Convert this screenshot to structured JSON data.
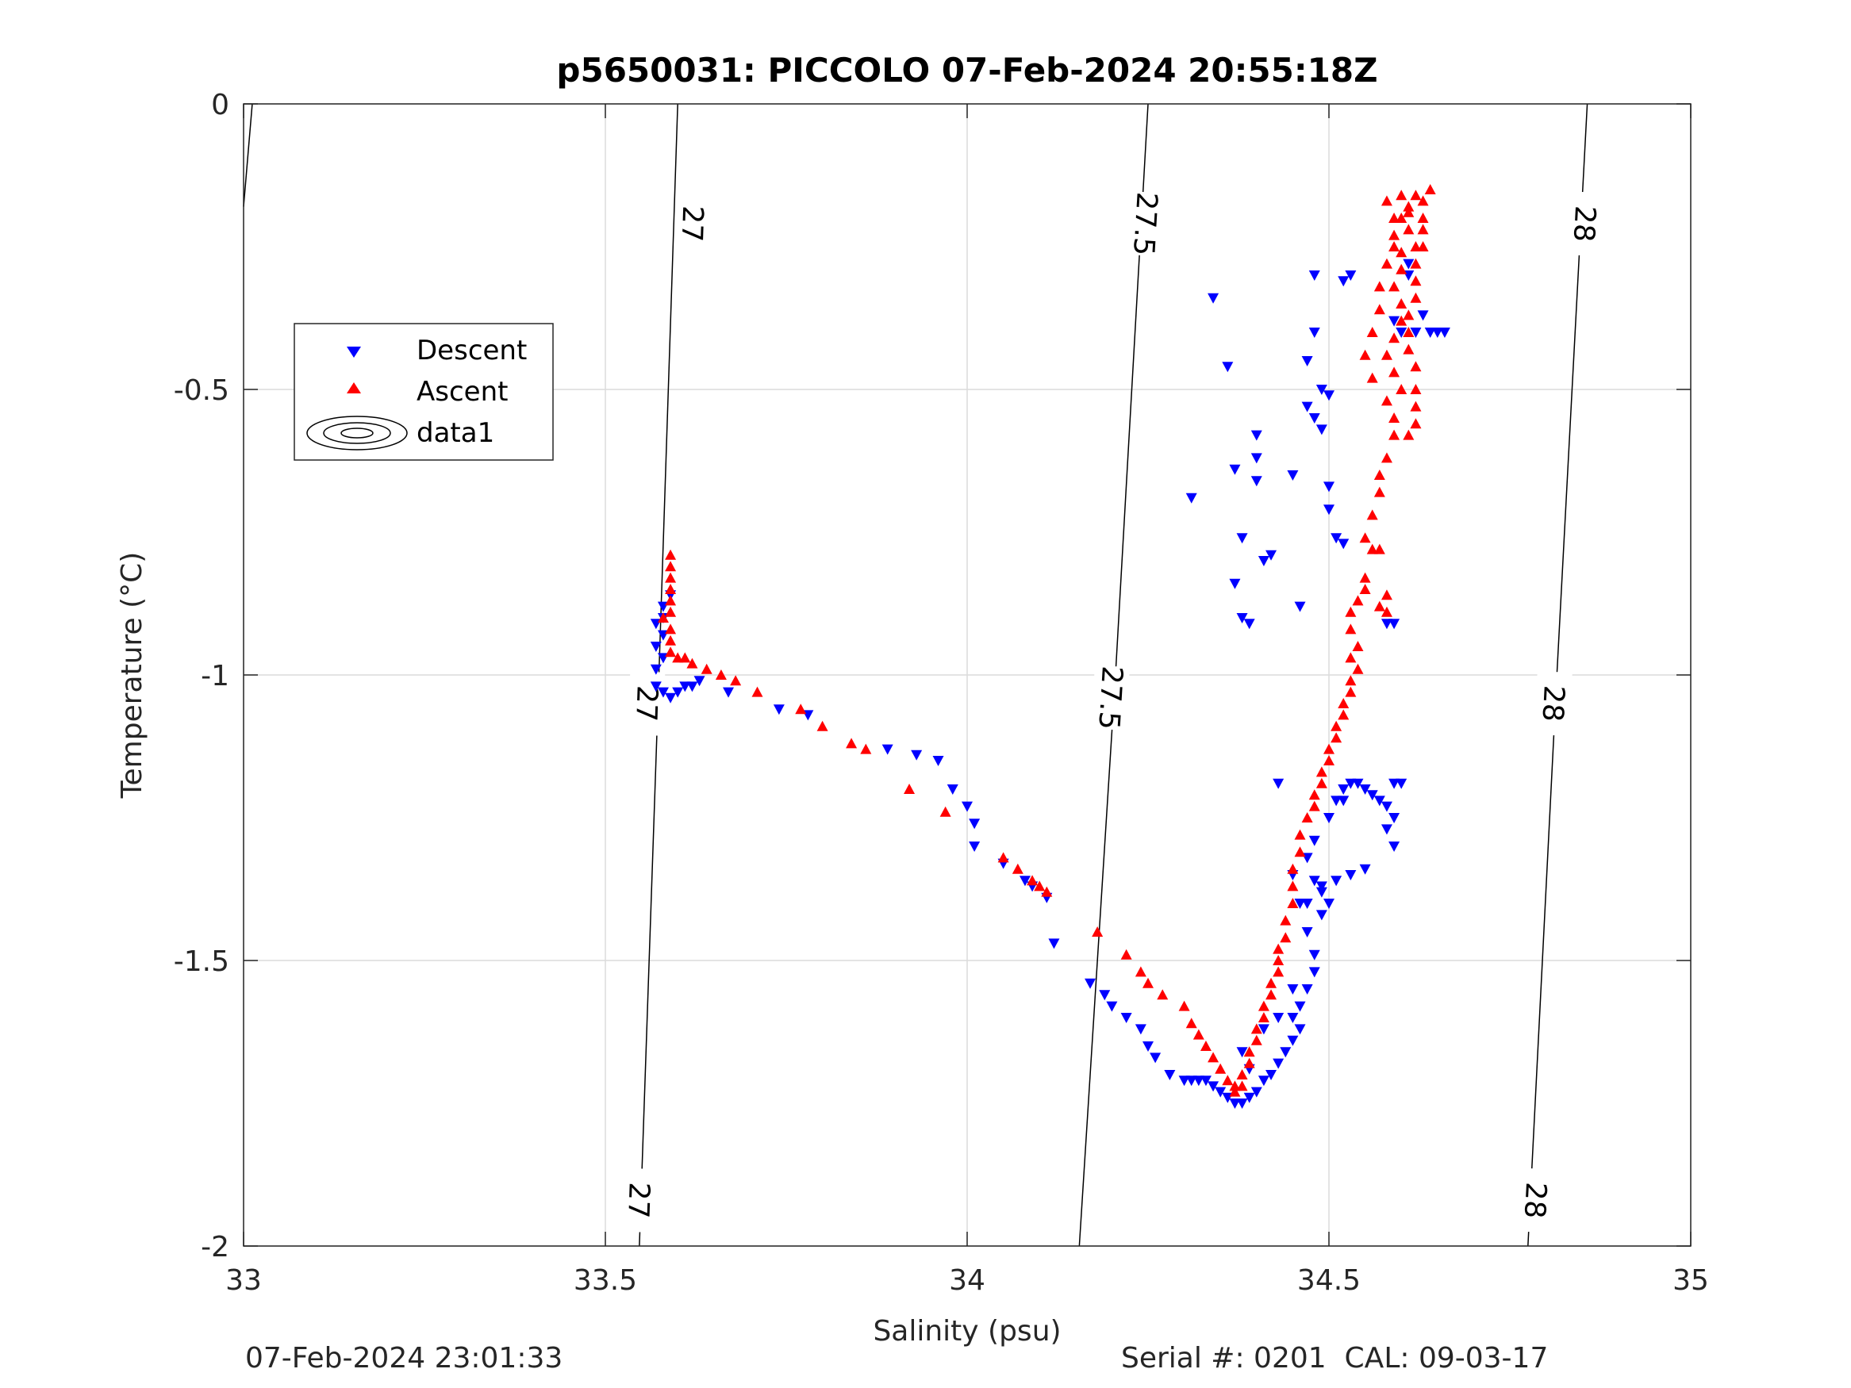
{
  "chart_data": {
    "type": "scatter",
    "title": "p5650031: PICCOLO 07-Feb-2024 20:55:18Z",
    "xlabel": "Salinity (psu)",
    "ylabel": "Temperature (°C)",
    "xlim": [
      33,
      35
    ],
    "ylim": [
      -2,
      0
    ],
    "xticks": [
      33,
      33.5,
      34,
      34.5,
      35
    ],
    "xtick_labels": [
      "33",
      "33.5",
      "34",
      "34.5",
      "35"
    ],
    "yticks": [
      -2,
      -1.5,
      -1,
      -0.5,
      0
    ],
    "ytick_labels": [
      "-2",
      "-1.5",
      "-1",
      "-0.5",
      "0"
    ],
    "grid": true,
    "legend_position": "upper-left",
    "legend": [
      "Descent",
      "Ascent",
      "data1"
    ],
    "series": [
      {
        "name": "Descent",
        "marker": "triangle-down",
        "color": "#0000ff",
        "points": [
          [
            34.34,
            -0.34
          ],
          [
            34.36,
            -0.46
          ],
          [
            34.48,
            -0.3
          ],
          [
            34.52,
            -0.31
          ],
          [
            34.53,
            -0.3
          ],
          [
            34.48,
            -0.4
          ],
          [
            34.47,
            -0.45
          ],
          [
            34.49,
            -0.5
          ],
          [
            34.5,
            -0.51
          ],
          [
            34.47,
            -0.53
          ],
          [
            34.48,
            -0.55
          ],
          [
            34.49,
            -0.57
          ],
          [
            34.4,
            -0.58
          ],
          [
            34.37,
            -0.64
          ],
          [
            34.4,
            -0.62
          ],
          [
            34.45,
            -0.65
          ],
          [
            34.4,
            -0.66
          ],
          [
            34.5,
            -0.67
          ],
          [
            34.31,
            -0.69
          ],
          [
            34.5,
            -0.71
          ],
          [
            34.38,
            -0.76
          ],
          [
            34.51,
            -0.76
          ],
          [
            34.52,
            -0.77
          ],
          [
            34.42,
            -0.79
          ],
          [
            34.41,
            -0.8
          ],
          [
            34.37,
            -0.84
          ],
          [
            34.46,
            -0.88
          ],
          [
            34.38,
            -0.9
          ],
          [
            34.39,
            -0.91
          ],
          [
            34.58,
            -0.91
          ],
          [
            34.59,
            -0.91
          ],
          [
            34.61,
            -0.28
          ],
          [
            34.61,
            -0.3
          ],
          [
            34.59,
            -0.38
          ],
          [
            34.6,
            -0.4
          ],
          [
            34.62,
            -0.4
          ],
          [
            34.64,
            -0.4
          ],
          [
            34.65,
            -0.4
          ],
          [
            34.66,
            -0.4
          ],
          [
            34.63,
            -0.37
          ],
          [
            33.59,
            -0.86
          ],
          [
            33.58,
            -0.88
          ],
          [
            33.58,
            -0.9
          ],
          [
            33.57,
            -0.91
          ],
          [
            33.58,
            -0.93
          ],
          [
            33.57,
            -0.95
          ],
          [
            33.58,
            -0.97
          ],
          [
            33.57,
            -0.99
          ],
          [
            33.57,
            -1.02
          ],
          [
            33.58,
            -1.03
          ],
          [
            33.59,
            -1.04
          ],
          [
            33.6,
            -1.03
          ],
          [
            33.61,
            -1.02
          ],
          [
            33.62,
            -1.02
          ],
          [
            33.63,
            -1.01
          ],
          [
            33.67,
            -1.03
          ],
          [
            33.74,
            -1.06
          ],
          [
            33.78,
            -1.07
          ],
          [
            33.89,
            -1.13
          ],
          [
            33.93,
            -1.14
          ],
          [
            33.96,
            -1.15
          ],
          [
            33.98,
            -1.2
          ],
          [
            34.0,
            -1.23
          ],
          [
            34.01,
            -1.26
          ],
          [
            34.01,
            -1.3
          ],
          [
            34.05,
            -1.33
          ],
          [
            34.08,
            -1.36
          ],
          [
            34.09,
            -1.37
          ],
          [
            34.11,
            -1.39
          ],
          [
            34.12,
            -1.47
          ],
          [
            34.17,
            -1.54
          ],
          [
            34.19,
            -1.56
          ],
          [
            34.2,
            -1.58
          ],
          [
            34.22,
            -1.6
          ],
          [
            34.24,
            -1.62
          ],
          [
            34.25,
            -1.65
          ],
          [
            34.26,
            -1.67
          ],
          [
            34.28,
            -1.7
          ],
          [
            34.3,
            -1.71
          ],
          [
            34.31,
            -1.71
          ],
          [
            34.32,
            -1.71
          ],
          [
            34.33,
            -1.71
          ],
          [
            34.34,
            -1.72
          ],
          [
            34.35,
            -1.73
          ],
          [
            34.36,
            -1.74
          ],
          [
            34.37,
            -1.75
          ],
          [
            34.38,
            -1.75
          ],
          [
            34.39,
            -1.74
          ],
          [
            34.4,
            -1.73
          ],
          [
            34.41,
            -1.71
          ],
          [
            34.42,
            -1.7
          ],
          [
            34.43,
            -1.68
          ],
          [
            34.44,
            -1.66
          ],
          [
            34.45,
            -1.64
          ],
          [
            34.46,
            -1.62
          ],
          [
            34.45,
            -1.6
          ],
          [
            34.46,
            -1.58
          ],
          [
            34.47,
            -1.55
          ],
          [
            34.48,
            -1.52
          ],
          [
            34.48,
            -1.49
          ],
          [
            34.47,
            -1.45
          ],
          [
            34.49,
            -1.42
          ],
          [
            34.47,
            -1.4
          ],
          [
            34.49,
            -1.37
          ],
          [
            34.51,
            -1.36
          ],
          [
            34.53,
            -1.35
          ],
          [
            34.55,
            -1.34
          ],
          [
            34.48,
            -1.36
          ],
          [
            34.49,
            -1.38
          ],
          [
            34.5,
            -1.4
          ],
          [
            34.46,
            -1.4
          ],
          [
            34.45,
            -1.35
          ],
          [
            34.47,
            -1.32
          ],
          [
            34.48,
            -1.29
          ],
          [
            34.5,
            -1.25
          ],
          [
            34.51,
            -1.22
          ],
          [
            34.52,
            -1.2
          ],
          [
            34.53,
            -1.19
          ],
          [
            34.54,
            -1.19
          ],
          [
            34.55,
            -1.2
          ],
          [
            34.56,
            -1.21
          ],
          [
            34.57,
            -1.22
          ],
          [
            34.58,
            -1.23
          ],
          [
            34.59,
            -1.19
          ],
          [
            34.6,
            -1.19
          ],
          [
            34.59,
            -1.25
          ],
          [
            34.58,
            -1.27
          ],
          [
            34.59,
            -1.3
          ],
          [
            34.43,
            -1.19
          ],
          [
            34.52,
            -1.22
          ],
          [
            34.45,
            -1.55
          ],
          [
            34.43,
            -1.6
          ],
          [
            34.41,
            -1.62
          ],
          [
            34.38,
            -1.66
          ],
          [
            34.39,
            -1.69
          ]
        ]
      },
      {
        "name": "Ascent",
        "marker": "triangle-up",
        "color": "#ff0000",
        "points": [
          [
            33.59,
            -0.79
          ],
          [
            33.59,
            -0.81
          ],
          [
            33.59,
            -0.83
          ],
          [
            33.59,
            -0.85
          ],
          [
            33.59,
            -0.87
          ],
          [
            33.59,
            -0.89
          ],
          [
            33.58,
            -0.9
          ],
          [
            33.59,
            -0.92
          ],
          [
            33.59,
            -0.94
          ],
          [
            33.59,
            -0.96
          ],
          [
            33.6,
            -0.97
          ],
          [
            33.61,
            -0.97
          ],
          [
            33.62,
            -0.98
          ],
          [
            33.64,
            -0.99
          ],
          [
            33.66,
            -1.0
          ],
          [
            33.68,
            -1.01
          ],
          [
            33.71,
            -1.03
          ],
          [
            33.77,
            -1.06
          ],
          [
            33.8,
            -1.09
          ],
          [
            33.84,
            -1.12
          ],
          [
            33.86,
            -1.13
          ],
          [
            33.92,
            -1.2
          ],
          [
            33.97,
            -1.24
          ],
          [
            34.05,
            -1.32
          ],
          [
            34.07,
            -1.34
          ],
          [
            34.09,
            -1.36
          ],
          [
            34.1,
            -1.37
          ],
          [
            34.11,
            -1.38
          ],
          [
            34.18,
            -1.45
          ],
          [
            34.22,
            -1.49
          ],
          [
            34.24,
            -1.52
          ],
          [
            34.25,
            -1.54
          ],
          [
            34.27,
            -1.56
          ],
          [
            34.3,
            -1.58
          ],
          [
            34.31,
            -1.61
          ],
          [
            34.32,
            -1.63
          ],
          [
            34.33,
            -1.65
          ],
          [
            34.34,
            -1.67
          ],
          [
            34.35,
            -1.69
          ],
          [
            34.36,
            -1.71
          ],
          [
            34.37,
            -1.72
          ],
          [
            34.37,
            -1.73
          ],
          [
            34.38,
            -1.72
          ],
          [
            34.38,
            -1.7
          ],
          [
            34.39,
            -1.68
          ],
          [
            34.39,
            -1.66
          ],
          [
            34.4,
            -1.64
          ],
          [
            34.4,
            -1.62
          ],
          [
            34.41,
            -1.6
          ],
          [
            34.41,
            -1.58
          ],
          [
            34.42,
            -1.56
          ],
          [
            34.42,
            -1.54
          ],
          [
            34.43,
            -1.52
          ],
          [
            34.43,
            -1.5
          ],
          [
            34.43,
            -1.48
          ],
          [
            34.44,
            -1.46
          ],
          [
            34.44,
            -1.43
          ],
          [
            34.45,
            -1.4
          ],
          [
            34.45,
            -1.37
          ],
          [
            34.45,
            -1.34
          ],
          [
            34.46,
            -1.31
          ],
          [
            34.46,
            -1.28
          ],
          [
            34.47,
            -1.25
          ],
          [
            34.48,
            -1.23
          ],
          [
            34.48,
            -1.21
          ],
          [
            34.49,
            -1.19
          ],
          [
            34.49,
            -1.17
          ],
          [
            34.5,
            -1.15
          ],
          [
            34.5,
            -1.13
          ],
          [
            34.51,
            -1.11
          ],
          [
            34.51,
            -1.09
          ],
          [
            34.52,
            -1.07
          ],
          [
            34.52,
            -1.05
          ],
          [
            34.53,
            -1.03
          ],
          [
            34.53,
            -1.01
          ],
          [
            34.54,
            -0.99
          ],
          [
            34.53,
            -0.97
          ],
          [
            34.54,
            -0.95
          ],
          [
            34.53,
            -0.92
          ],
          [
            34.53,
            -0.89
          ],
          [
            34.54,
            -0.87
          ],
          [
            34.55,
            -0.85
          ],
          [
            34.55,
            -0.83
          ],
          [
            34.56,
            -0.78
          ],
          [
            34.55,
            -0.76
          ],
          [
            34.57,
            -0.78
          ],
          [
            34.58,
            -0.86
          ],
          [
            34.57,
            -0.88
          ],
          [
            34.58,
            -0.89
          ],
          [
            34.56,
            -0.72
          ],
          [
            34.57,
            -0.68
          ],
          [
            34.57,
            -0.65
          ],
          [
            34.58,
            -0.62
          ],
          [
            34.59,
            -0.58
          ],
          [
            34.59,
            -0.55
          ],
          [
            34.58,
            -0.52
          ],
          [
            34.6,
            -0.5
          ],
          [
            34.59,
            -0.47
          ],
          [
            34.58,
            -0.44
          ],
          [
            34.59,
            -0.41
          ],
          [
            34.6,
            -0.38
          ],
          [
            34.6,
            -0.35
          ],
          [
            34.59,
            -0.32
          ],
          [
            34.6,
            -0.29
          ],
          [
            34.6,
            -0.26
          ],
          [
            34.59,
            -0.23
          ],
          [
            34.59,
            -0.2
          ],
          [
            34.58,
            -0.17
          ],
          [
            34.6,
            -0.16
          ],
          [
            34.61,
            -0.19
          ],
          [
            34.61,
            -0.22
          ],
          [
            34.62,
            -0.25
          ],
          [
            34.62,
            -0.28
          ],
          [
            34.62,
            -0.31
          ],
          [
            34.62,
            -0.34
          ],
          [
            34.61,
            -0.37
          ],
          [
            34.61,
            -0.4
          ],
          [
            34.61,
            -0.43
          ],
          [
            34.62,
            -0.46
          ],
          [
            34.62,
            -0.5
          ],
          [
            34.62,
            -0.53
          ],
          [
            34.62,
            -0.56
          ],
          [
            34.61,
            -0.58
          ],
          [
            34.63,
            -0.2
          ],
          [
            34.63,
            -0.17
          ],
          [
            34.64,
            -0.15
          ],
          [
            34.63,
            -0.22
          ],
          [
            34.63,
            -0.25
          ],
          [
            34.62,
            -0.16
          ],
          [
            34.61,
            -0.18
          ],
          [
            34.6,
            -0.2
          ],
          [
            34.59,
            -0.25
          ],
          [
            34.58,
            -0.28
          ],
          [
            34.57,
            -0.32
          ],
          [
            34.57,
            -0.36
          ],
          [
            34.56,
            -0.4
          ],
          [
            34.55,
            -0.44
          ],
          [
            34.56,
            -0.48
          ]
        ]
      }
    ],
    "contours": [
      {
        "label": "27",
        "points": [
          [
            33.547,
            -2.0
          ],
          [
            33.574,
            -1.0
          ],
          [
            33.6,
            0.0
          ]
        ],
        "label_positions": [
          [
            33.546,
            -1.92
          ],
          [
            33.557,
            -1.05
          ],
          [
            33.62,
            -0.21
          ]
        ]
      },
      {
        "label": "27.5",
        "points": [
          [
            34.155,
            -2.0
          ],
          [
            34.205,
            -1.0
          ],
          [
            34.25,
            0.0
          ]
        ],
        "label_positions": [
          [
            34.198,
            -1.04
          ],
          [
            34.246,
            -0.21
          ]
        ]
      },
      {
        "label": "28",
        "points": [
          [
            34.775,
            -2.0
          ],
          [
            34.815,
            -1.0
          ],
          [
            34.857,
            0.0
          ]
        ],
        "label_positions": [
          [
            34.785,
            -1.92
          ],
          [
            34.81,
            -1.05
          ],
          [
            34.853,
            -0.21
          ]
        ]
      },
      {
        "label": "",
        "points": [
          [
            33.0,
            -0.18
          ],
          [
            33.012,
            0.0
          ]
        ],
        "label_positions": []
      }
    ]
  },
  "footer": {
    "left": "07-Feb-2024 23:01:33",
    "right": "Serial #: 0201  CAL: 09-03-17"
  }
}
